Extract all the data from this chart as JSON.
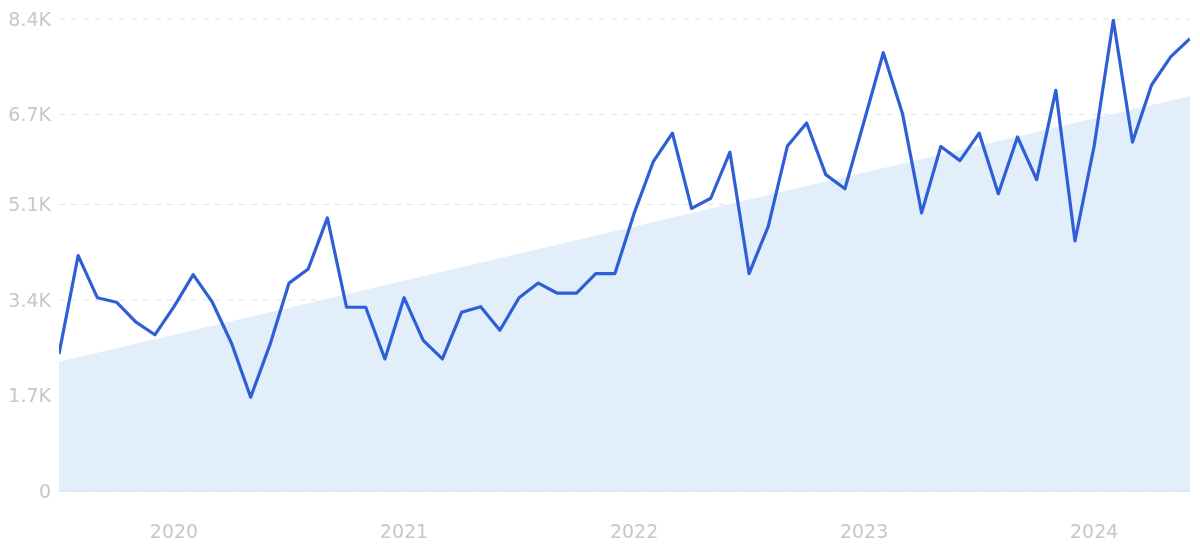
{
  "chart_data": {
    "type": "line",
    "xlim": [
      "2019-07",
      "2024-06"
    ],
    "ylim": [
      0,
      8400
    ],
    "xticks": [
      {
        "value": "2020-01",
        "label": "2020"
      },
      {
        "value": "2021-01",
        "label": "2021"
      },
      {
        "value": "2022-01",
        "label": "2022"
      },
      {
        "value": "2023-01",
        "label": "2023"
      },
      {
        "value": "2024-01",
        "label": "2024"
      }
    ],
    "yticks": [
      0,
      {
        "value": 1700,
        "label": "1.7K"
      },
      {
        "value": 3400,
        "label": "3.4K"
      },
      {
        "value": 5100,
        "label": "5.1K"
      },
      {
        "value": 6700,
        "label": "6.7K"
      },
      {
        "value": 8400,
        "label": "8.4K"
      }
    ],
    "grid": "y",
    "marker": "none",
    "series": [
      {
        "type": "area",
        "color": "#e3eefb",
        "x": [
          "2019-07",
          "2024-06"
        ],
        "values": [
          2300,
          7030
        ]
      },
      {
        "color": "#2f5fd6",
        "x": [
          "2019-07",
          "2019-08",
          "2019-09",
          "2019-10",
          "2019-11",
          "2019-12",
          "2020-01",
          "2020-02",
          "2020-03",
          "2020-04",
          "2020-05",
          "2020-06",
          "2020-07",
          "2020-08",
          "2020-09",
          "2020-10",
          "2020-11",
          "2020-12",
          "2021-01",
          "2021-02",
          "2021-03",
          "2021-04",
          "2021-05",
          "2021-06",
          "2021-07",
          "2021-08",
          "2021-09",
          "2021-10",
          "2021-11",
          "2021-12",
          "2022-01",
          "2022-02",
          "2022-03",
          "2022-04",
          "2022-05",
          "2022-06",
          "2022-07",
          "2022-08",
          "2022-09",
          "2022-10",
          "2022-11",
          "2022-12",
          "2023-01",
          "2023-02",
          "2023-03",
          "2023-04",
          "2023-05",
          "2023-06",
          "2023-07",
          "2023-08",
          "2023-09",
          "2023-10",
          "2023-11",
          "2023-12",
          "2024-01",
          "2024-02",
          "2024-03",
          "2024-04",
          "2024-05",
          "2024-06"
        ],
        "values": [
          2440,
          4190,
          3440,
          3360,
          3010,
          2780,
          3280,
          3850,
          3360,
          2630,
          1670,
          2600,
          3700,
          3950,
          4860,
          3270,
          3270,
          2350,
          3440,
          2680,
          2350,
          3180,
          3280,
          2860,
          3440,
          3700,
          3520,
          3520,
          3870,
          3870,
          4940,
          5860,
          6370,
          5030,
          5210,
          6030,
          3870,
          4710,
          6140,
          6550,
          5630,
          5380,
          6580,
          7800,
          6720,
          4950,
          6130,
          5880,
          6370,
          5290,
          6300,
          5540,
          7130,
          4450,
          6140,
          8380,
          6210,
          7230,
          7730,
          8050
        ]
      }
    ]
  }
}
